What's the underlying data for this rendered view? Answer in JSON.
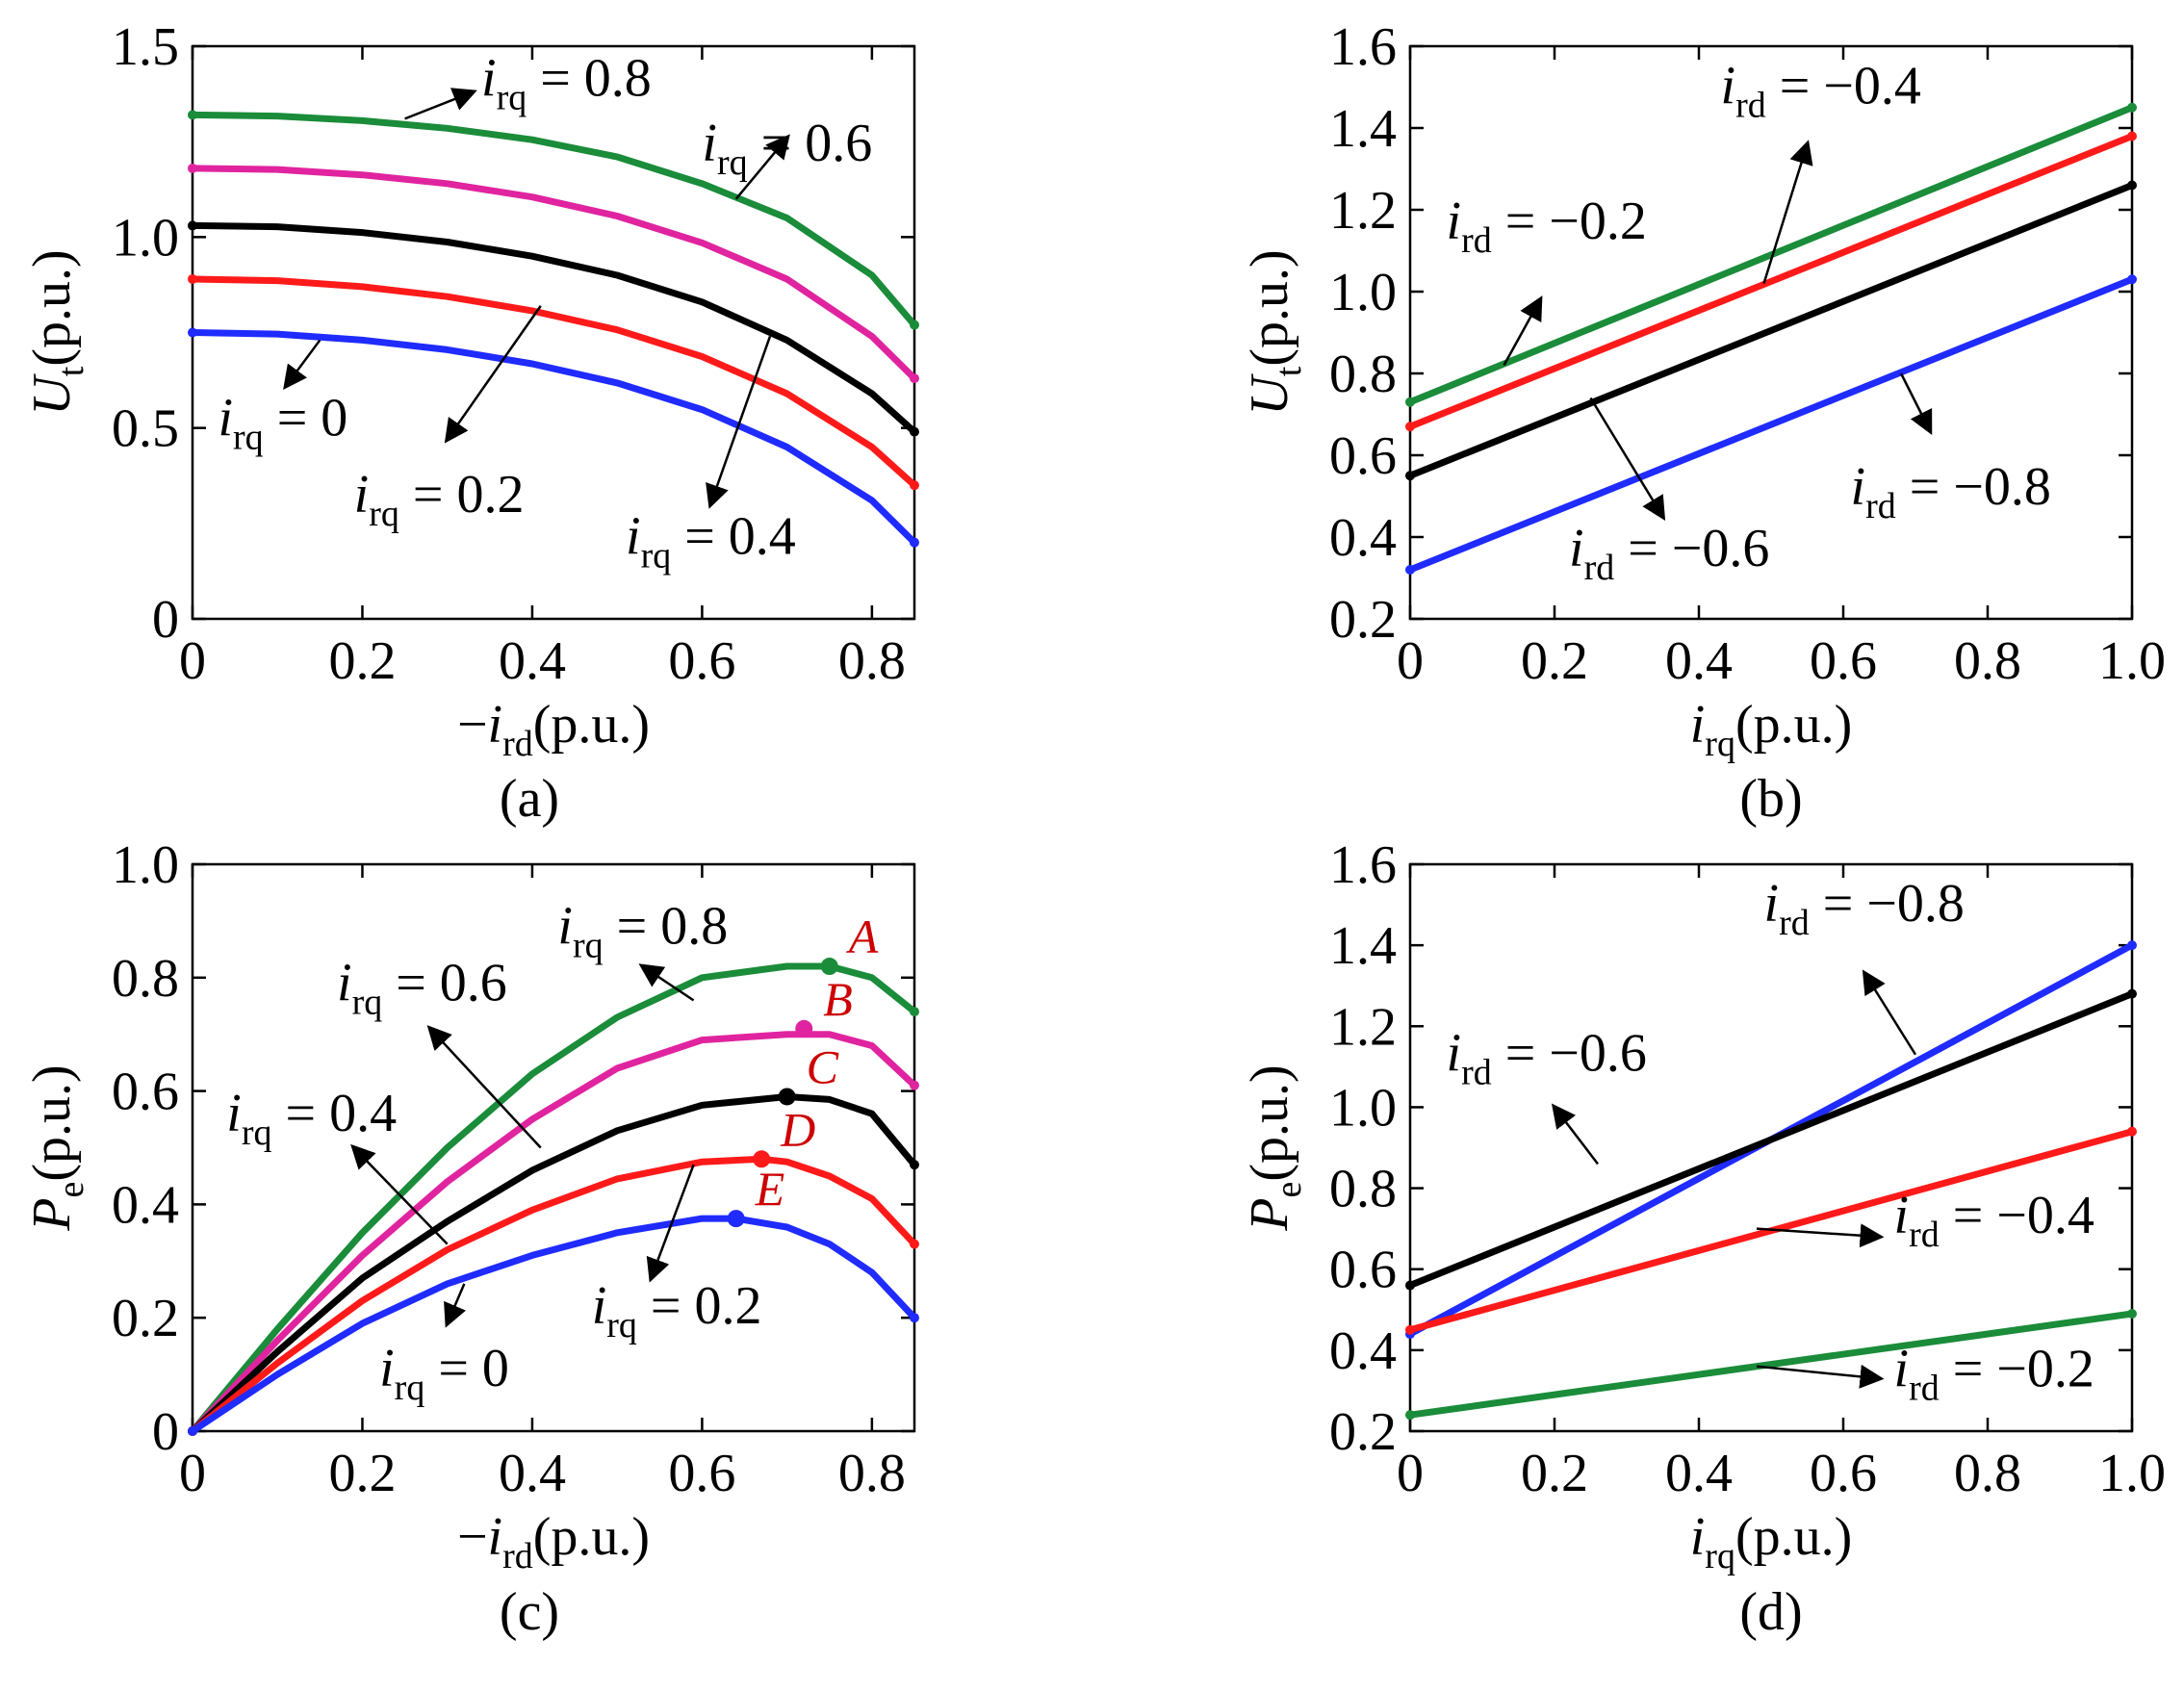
{
  "figure": {
    "panels": [
      "(a)",
      "(b)",
      "(c)",
      "(d)"
    ]
  },
  "colors": {
    "green": "#1a8c3a",
    "magenta": "#e0249f",
    "black": "#000000",
    "red": "#ff1a1a",
    "blue": "#1f2bff",
    "point_label": "#cc0000"
  },
  "chart_data": [
    {
      "id": "a",
      "type": "line",
      "caption": "(a)",
      "xlabel": {
        "prefix": "−",
        "var": "i",
        "sub": "rd",
        "unit": "(p.u.)"
      },
      "ylabel": {
        "var": "U",
        "sub": "t",
        "unit": "(p.u.)"
      },
      "xlim": [
        0,
        0.85
      ],
      "ylim": [
        0,
        1.5
      ],
      "xticks": [
        "0",
        "0.2",
        "0.4",
        "0.6",
        "0.8"
      ],
      "xtick_values": [
        0,
        0.2,
        0.4,
        0.6,
        0.8
      ],
      "yticks": [
        "0",
        "0.5",
        "1.0",
        "1.5"
      ],
      "ytick_values": [
        0,
        0.5,
        1.0,
        1.5
      ],
      "series": [
        {
          "name": "irq=0.8",
          "color": "green",
          "x": [
            0,
            0.1,
            0.2,
            0.3,
            0.4,
            0.5,
            0.6,
            0.7,
            0.8,
            0.85
          ],
          "y": [
            1.32,
            1.317,
            1.305,
            1.285,
            1.255,
            1.21,
            1.14,
            1.05,
            0.9,
            0.77
          ]
        },
        {
          "name": "irq=0.6",
          "color": "magenta",
          "x": [
            0,
            0.1,
            0.2,
            0.3,
            0.4,
            0.5,
            0.6,
            0.7,
            0.8,
            0.85
          ],
          "y": [
            1.18,
            1.177,
            1.163,
            1.14,
            1.105,
            1.055,
            0.985,
            0.89,
            0.74,
            0.63
          ]
        },
        {
          "name": "irq=0.4",
          "color": "black",
          "x": [
            0,
            0.1,
            0.2,
            0.3,
            0.4,
            0.5,
            0.6,
            0.7,
            0.8,
            0.85
          ],
          "y": [
            1.03,
            1.027,
            1.012,
            0.987,
            0.95,
            0.9,
            0.83,
            0.73,
            0.59,
            0.49
          ]
        },
        {
          "name": "irq=0.2",
          "color": "red",
          "x": [
            0,
            0.1,
            0.2,
            0.3,
            0.4,
            0.5,
            0.6,
            0.7,
            0.8,
            0.85
          ],
          "y": [
            0.89,
            0.886,
            0.87,
            0.844,
            0.807,
            0.757,
            0.687,
            0.59,
            0.45,
            0.35
          ]
        },
        {
          "name": "irq=0",
          "color": "blue",
          "x": [
            0,
            0.1,
            0.2,
            0.3,
            0.4,
            0.5,
            0.6,
            0.7,
            0.8,
            0.85
          ],
          "y": [
            0.75,
            0.746,
            0.73,
            0.705,
            0.668,
            0.618,
            0.548,
            0.45,
            0.31,
            0.2
          ]
        }
      ],
      "annotations": [
        {
          "var": "i",
          "sub": "rq",
          "eq": " = 0.8",
          "tx": 0.34,
          "ty": 1.37,
          "from": [
            0.25,
            1.31
          ],
          "to": [
            0.33,
            1.38
          ]
        },
        {
          "var": "i",
          "sub": "rq",
          "eq": " = 0.6",
          "tx": 0.6,
          "ty": 1.2,
          "from": [
            0.64,
            1.1
          ],
          "to": [
            0.7,
            1.26
          ]
        },
        {
          "var": "i",
          "sub": "rq",
          "eq": " = 0",
          "tx": 0.03,
          "ty": 0.48,
          "from": [
            0.15,
            0.73
          ],
          "to": [
            0.11,
            0.61
          ]
        },
        {
          "var": "i",
          "sub": "rq",
          "eq": " = 0.2",
          "tx": 0.19,
          "ty": 0.28,
          "from": [
            0.41,
            0.82
          ],
          "to": [
            0.3,
            0.47
          ]
        },
        {
          "var": "i",
          "sub": "rq",
          "eq": " = 0.4",
          "tx": 0.51,
          "ty": 0.17,
          "from": [
            0.68,
            0.74
          ],
          "to": [
            0.61,
            0.3
          ]
        }
      ],
      "points": []
    },
    {
      "id": "b",
      "type": "line",
      "caption": "(b)",
      "xlabel": {
        "prefix": "",
        "var": "i",
        "sub": "rq",
        "unit": "(p.u.)"
      },
      "ylabel": {
        "var": "U",
        "sub": "t",
        "unit": "(p.u.)"
      },
      "xlim": [
        0,
        1.0
      ],
      "ylim": [
        0.2,
        1.6
      ],
      "xticks": [
        "0",
        "0.2",
        "0.4",
        "0.6",
        "0.8",
        "1.0"
      ],
      "xtick_values": [
        0,
        0.2,
        0.4,
        0.6,
        0.8,
        1.0
      ],
      "yticks": [
        "0.2",
        "0.4",
        "0.6",
        "0.8",
        "1.0",
        "1.2",
        "1.4",
        "1.6"
      ],
      "ytick_values": [
        0.2,
        0.4,
        0.6,
        0.8,
        1.0,
        1.2,
        1.4,
        1.6
      ],
      "series": [
        {
          "name": "ird=-0.2",
          "color": "green",
          "x": [
            0,
            1.0
          ],
          "y": [
            0.73,
            1.45
          ]
        },
        {
          "name": "ird=-0.4",
          "color": "red",
          "x": [
            0,
            1.0
          ],
          "y": [
            0.67,
            1.38
          ]
        },
        {
          "name": "ird=-0.6",
          "color": "black",
          "x": [
            0,
            1.0
          ],
          "y": [
            0.55,
            1.26
          ]
        },
        {
          "name": "ird=-0.8",
          "color": "blue",
          "x": [
            0,
            1.0
          ],
          "y": [
            0.32,
            1.03
          ]
        }
      ],
      "annotations": [
        {
          "var": "i",
          "sub": "rd",
          "eq": " = −0.4",
          "tx": 0.43,
          "ty": 1.46,
          "from": [
            0.49,
            1.02
          ],
          "to": [
            0.55,
            1.36
          ]
        },
        {
          "var": "i",
          "sub": "rd",
          "eq": " = −0.2",
          "tx": 0.05,
          "ty": 1.13,
          "from": [
            0.13,
            0.82
          ],
          "to": [
            0.18,
            0.98
          ]
        },
        {
          "var": "i",
          "sub": "rd",
          "eq": " = −0.6",
          "tx": 0.22,
          "ty": 0.33,
          "from": [
            0.25,
            0.74
          ],
          "to": [
            0.35,
            0.45
          ]
        },
        {
          "var": "i",
          "sub": "rd",
          "eq": " = −0.8",
          "tx": 0.61,
          "ty": 0.48,
          "from": [
            0.68,
            0.8
          ],
          "to": [
            0.72,
            0.66
          ]
        }
      ],
      "points": []
    },
    {
      "id": "c",
      "type": "line",
      "caption": "(c)",
      "xlabel": {
        "prefix": "−",
        "var": "i",
        "sub": "rd",
        "unit": "(p.u.)"
      },
      "ylabel": {
        "var": "P",
        "sub": "e",
        "unit": "(p.u.)"
      },
      "xlim": [
        0,
        0.85
      ],
      "ylim": [
        0,
        1.0
      ],
      "xticks": [
        "0",
        "0.2",
        "0.4",
        "0.6",
        "0.8"
      ],
      "xtick_values": [
        0,
        0.2,
        0.4,
        0.6,
        0.8
      ],
      "yticks": [
        "0",
        "0.2",
        "0.4",
        "0.6",
        "0.8",
        "1.0"
      ],
      "ytick_values": [
        0,
        0.2,
        0.4,
        0.6,
        0.8,
        1.0
      ],
      "series": [
        {
          "name": "irq=0.8",
          "color": "green",
          "x": [
            0,
            0.1,
            0.2,
            0.3,
            0.4,
            0.5,
            0.6,
            0.7,
            0.75,
            0.8,
            0.85
          ],
          "y": [
            0,
            0.18,
            0.35,
            0.5,
            0.63,
            0.73,
            0.8,
            0.82,
            0.82,
            0.8,
            0.74
          ]
        },
        {
          "name": "irq=0.6",
          "color": "magenta",
          "x": [
            0,
            0.1,
            0.2,
            0.3,
            0.4,
            0.5,
            0.6,
            0.7,
            0.75,
            0.8,
            0.85
          ],
          "y": [
            0,
            0.16,
            0.31,
            0.44,
            0.55,
            0.64,
            0.69,
            0.7,
            0.7,
            0.68,
            0.61
          ]
        },
        {
          "name": "irq=0.4",
          "color": "black",
          "x": [
            0,
            0.1,
            0.2,
            0.3,
            0.4,
            0.5,
            0.6,
            0.7,
            0.75,
            0.8,
            0.85
          ],
          "y": [
            0,
            0.14,
            0.27,
            0.37,
            0.46,
            0.53,
            0.575,
            0.59,
            0.585,
            0.56,
            0.47
          ]
        },
        {
          "name": "irq=0.2",
          "color": "red",
          "x": [
            0,
            0.1,
            0.2,
            0.3,
            0.4,
            0.5,
            0.6,
            0.67,
            0.7,
            0.75,
            0.8,
            0.85
          ],
          "y": [
            0,
            0.12,
            0.23,
            0.32,
            0.39,
            0.445,
            0.475,
            0.48,
            0.475,
            0.45,
            0.41,
            0.33
          ]
        },
        {
          "name": "irq=0",
          "color": "blue",
          "x": [
            0,
            0.1,
            0.2,
            0.3,
            0.4,
            0.5,
            0.6,
            0.64,
            0.7,
            0.75,
            0.8,
            0.85
          ],
          "y": [
            0,
            0.1,
            0.19,
            0.26,
            0.31,
            0.35,
            0.375,
            0.375,
            0.36,
            0.33,
            0.28,
            0.2
          ]
        }
      ],
      "annotations": [
        {
          "var": "i",
          "sub": "rq",
          "eq": " = 0.8",
          "tx": 0.43,
          "ty": 0.86,
          "from": [
            0.59,
            0.76
          ],
          "to": [
            0.53,
            0.82
          ]
        },
        {
          "var": "i",
          "sub": "rq",
          "eq": " = 0.6",
          "tx": 0.17,
          "ty": 0.76,
          "from": [
            0.41,
            0.5
          ],
          "to": [
            0.28,
            0.71
          ]
        },
        {
          "var": "i",
          "sub": "rq",
          "eq": " = 0.4",
          "tx": 0.04,
          "ty": 0.53,
          "from": [
            0.3,
            0.33
          ],
          "to": [
            0.19,
            0.5
          ]
        },
        {
          "var": "i",
          "sub": "rq",
          "eq": " = 0.2",
          "tx": 0.47,
          "ty": 0.19,
          "from": [
            0.59,
            0.47
          ],
          "to": [
            0.54,
            0.27
          ]
        },
        {
          "var": "i",
          "sub": "rq",
          "eq": " = 0",
          "tx": 0.22,
          "ty": 0.08,
          "from": [
            0.32,
            0.26
          ],
          "to": [
            0.3,
            0.19
          ]
        }
      ],
      "points": [
        {
          "label": "A",
          "color": "green",
          "x": 0.75,
          "y": 0.82
        },
        {
          "label": "B",
          "color": "magenta",
          "x": 0.72,
          "y": 0.71
        },
        {
          "label": "C",
          "color": "black",
          "x": 0.7,
          "y": 0.59
        },
        {
          "label": "D",
          "color": "red",
          "x": 0.67,
          "y": 0.48
        },
        {
          "label": "E",
          "color": "blue",
          "x": 0.64,
          "y": 0.375
        }
      ]
    },
    {
      "id": "d",
      "type": "line",
      "caption": "(d)",
      "xlabel": {
        "prefix": "",
        "var": "i",
        "sub": "rq",
        "unit": "(p.u.)"
      },
      "ylabel": {
        "var": "P",
        "sub": "e",
        "unit": "(p.u.)"
      },
      "xlim": [
        0,
        1.0
      ],
      "ylim": [
        0.2,
        1.6
      ],
      "xticks": [
        "0",
        "0.2",
        "0.4",
        "0.6",
        "0.8",
        "1.0"
      ],
      "xtick_values": [
        0,
        0.2,
        0.4,
        0.6,
        0.8,
        1.0
      ],
      "yticks": [
        "0.2",
        "0.4",
        "0.6",
        "0.8",
        "1.0",
        "1.2",
        "1.4",
        "1.6"
      ],
      "ytick_values": [
        0.2,
        0.4,
        0.6,
        0.8,
        1.0,
        1.2,
        1.4,
        1.6
      ],
      "series": [
        {
          "name": "ird=-0.8",
          "color": "blue",
          "x": [
            0,
            1.0
          ],
          "y": [
            0.44,
            1.4
          ]
        },
        {
          "name": "ird=-0.6",
          "color": "black",
          "x": [
            0,
            1.0
          ],
          "y": [
            0.56,
            1.28
          ]
        },
        {
          "name": "ird=-0.4",
          "color": "red",
          "x": [
            0,
            1.0
          ],
          "y": [
            0.45,
            0.94
          ]
        },
        {
          "name": "ird=-0.2",
          "color": "green",
          "x": [
            0,
            1.0
          ],
          "y": [
            0.24,
            0.49
          ]
        }
      ],
      "annotations": [
        {
          "var": "i",
          "sub": "rd",
          "eq": " = −0.8",
          "tx": 0.49,
          "ty": 1.46,
          "from": [
            0.7,
            1.13
          ],
          "to": [
            0.63,
            1.33
          ]
        },
        {
          "var": "i",
          "sub": "rd",
          "eq": " = −0.6",
          "tx": 0.05,
          "ty": 1.09,
          "from": [
            0.26,
            0.86
          ],
          "to": [
            0.2,
            1.0
          ]
        },
        {
          "var": "i",
          "sub": "rd",
          "eq": " = −0.4",
          "tx": 0.67,
          "ty": 0.69,
          "from": [
            0.48,
            0.7
          ],
          "to": [
            0.65,
            0.68
          ]
        },
        {
          "var": "i",
          "sub": "rd",
          "eq": " = −0.2",
          "tx": 0.67,
          "ty": 0.31,
          "from": [
            0.48,
            0.36
          ],
          "to": [
            0.65,
            0.33
          ]
        }
      ],
      "points": []
    }
  ]
}
